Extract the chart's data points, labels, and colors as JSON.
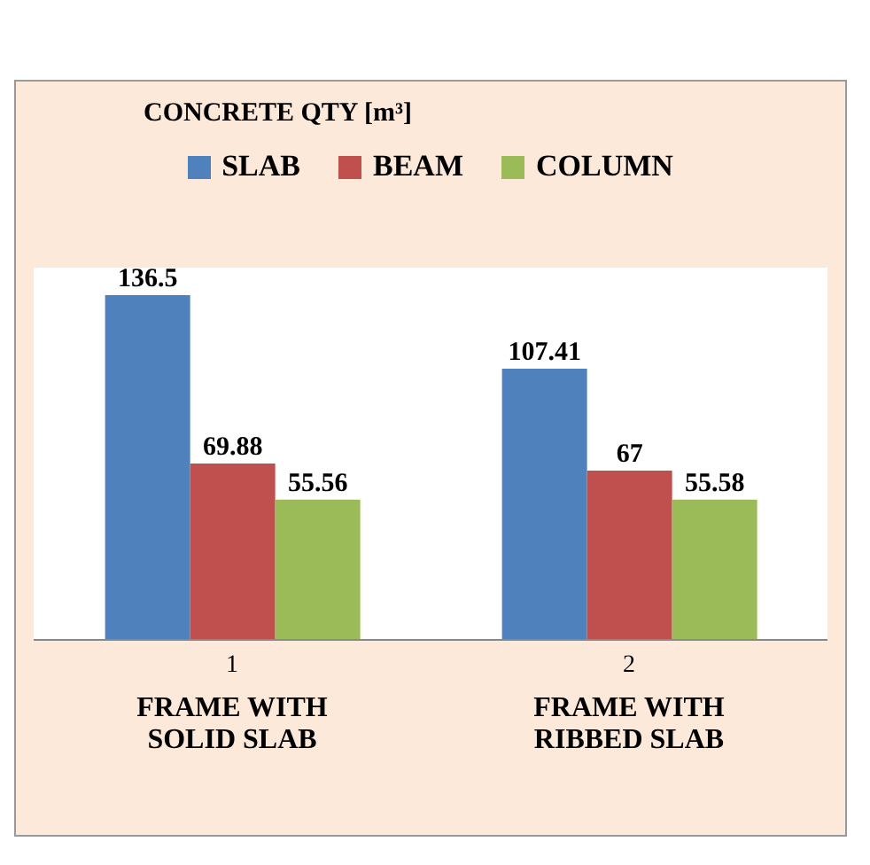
{
  "chart_data": {
    "type": "bar",
    "title": "CONCRETE QTY [m³]",
    "categories": [
      "1",
      "2"
    ],
    "series": [
      {
        "name": "SLAB",
        "color": "#4f81bd",
        "values": [
          136.5,
          107.41
        ]
      },
      {
        "name": "BEAM",
        "color": "#c0504d",
        "values": [
          69.88,
          67
        ]
      },
      {
        "name": "COLUMN",
        "color": "#9bbb59",
        "values": [
          55.56,
          55.58
        ]
      }
    ],
    "annotations": [
      "FRAME WITH SOLID SLAB",
      "FRAME WITH RIBBED SLAB"
    ],
    "data_labels": true,
    "legend": "top",
    "grid": false
  }
}
